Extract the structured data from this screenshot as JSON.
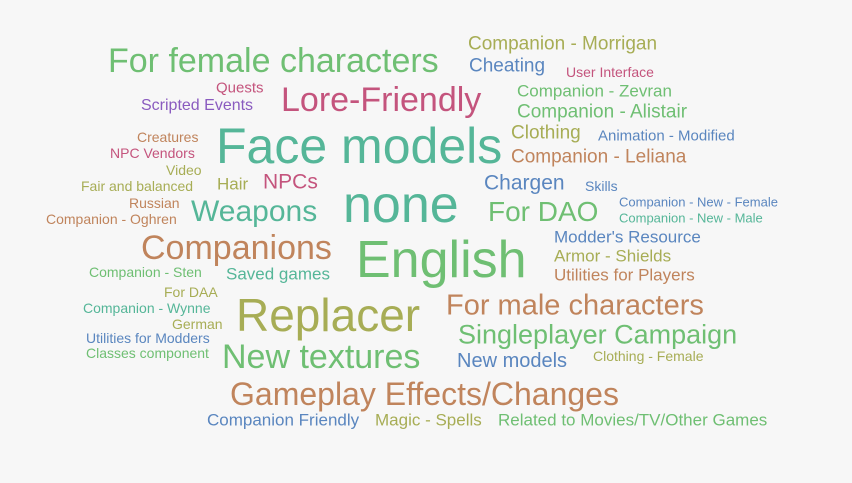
{
  "colors": {
    "background": "#f7f7f7",
    "green": "#6fbf73",
    "olive": "#a7ad55",
    "teal": "#55b698",
    "blue": "#5a86bf",
    "rose": "#c4547d",
    "purple": "#8a5bbf",
    "tan": "#c0845c"
  },
  "words": [
    {
      "text": "For female characters",
      "color": "#6fbf73"
    },
    {
      "text": "Companion - Morrigan",
      "color": "#a7ad55"
    },
    {
      "text": "Cheating",
      "color": "#5a86bf"
    },
    {
      "text": "User Interface",
      "color": "#c4547d"
    },
    {
      "text": "Quests",
      "color": "#c4547d"
    },
    {
      "text": "Lore-Friendly",
      "color": "#c4547d"
    },
    {
      "text": "Scripted Events",
      "color": "#8a5bbf"
    },
    {
      "text": "Companion - Zevran",
      "color": "#6fbf73"
    },
    {
      "text": "Companion - Alistair",
      "color": "#6fbf73"
    },
    {
      "text": "Face models",
      "color": "#55b698"
    },
    {
      "text": "Clothing",
      "color": "#a7ad55"
    },
    {
      "text": "Animation - Modified",
      "color": "#5a86bf"
    },
    {
      "text": "Creatures",
      "color": "#c0845c"
    },
    {
      "text": "NPC Vendors",
      "color": "#c4547d"
    },
    {
      "text": "Video",
      "color": "#a7ad55"
    },
    {
      "text": "Companion - Leliana",
      "color": "#c0845c"
    },
    {
      "text": "Fair and balanced",
      "color": "#a7ad55"
    },
    {
      "text": "Hair",
      "color": "#a7ad55"
    },
    {
      "text": "NPCs",
      "color": "#c4547d"
    },
    {
      "text": "none",
      "color": "#55b698"
    },
    {
      "text": "Chargen",
      "color": "#5a86bf"
    },
    {
      "text": "Skills",
      "color": "#5a86bf"
    },
    {
      "text": "Russian",
      "color": "#c0845c"
    },
    {
      "text": "Companion - New - Female",
      "color": "#5a86bf"
    },
    {
      "text": "Companion - Oghren",
      "color": "#c0845c"
    },
    {
      "text": "Weapons",
      "color": "#55b698"
    },
    {
      "text": "For DAO",
      "color": "#6fbf73"
    },
    {
      "text": "Companion - New - Male",
      "color": "#55b698"
    },
    {
      "text": "Companions",
      "color": "#c0845c"
    },
    {
      "text": "English",
      "color": "#6fbf73"
    },
    {
      "text": "Modder's Resource",
      "color": "#5a86bf"
    },
    {
      "text": "Armor - Shields",
      "color": "#a7ad55"
    },
    {
      "text": "Companion - Sten",
      "color": "#6fbf73"
    },
    {
      "text": "Saved games",
      "color": "#55b698"
    },
    {
      "text": "Utilities for Players",
      "color": "#c0845c"
    },
    {
      "text": "For DAA",
      "color": "#a7ad55"
    },
    {
      "text": "Replacer",
      "color": "#a7ad55"
    },
    {
      "text": "For male characters",
      "color": "#c0845c"
    },
    {
      "text": "Companion - Wynne",
      "color": "#55b698"
    },
    {
      "text": "German",
      "color": "#a7ad55"
    },
    {
      "text": "Singleplayer Campaign",
      "color": "#6fbf73"
    },
    {
      "text": "Utilities for Modders",
      "color": "#5a86bf"
    },
    {
      "text": "Classes component",
      "color": "#6fbf73"
    },
    {
      "text": "New textures",
      "color": "#6fbf73"
    },
    {
      "text": "New models",
      "color": "#5a86bf"
    },
    {
      "text": "Clothing - Female",
      "color": "#a7ad55"
    },
    {
      "text": "Gameplay Effects/Changes",
      "color": "#c0845c"
    },
    {
      "text": "Companion Friendly",
      "color": "#5a86bf"
    },
    {
      "text": "Magic - Spells",
      "color": "#a7ad55"
    },
    {
      "text": "Related to Movies/TV/Other Games",
      "color": "#6fbf73"
    }
  ]
}
